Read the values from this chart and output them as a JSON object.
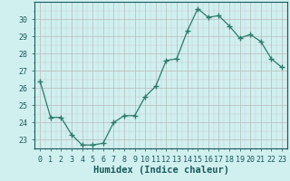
{
  "x": [
    0,
    1,
    2,
    3,
    4,
    5,
    6,
    7,
    8,
    9,
    10,
    11,
    12,
    13,
    14,
    15,
    16,
    17,
    18,
    19,
    20,
    21,
    22,
    23
  ],
  "y": [
    26.4,
    24.3,
    24.3,
    23.3,
    22.7,
    22.7,
    22.8,
    24.0,
    24.4,
    24.4,
    25.5,
    26.1,
    27.6,
    27.7,
    29.3,
    30.6,
    30.1,
    30.2,
    29.6,
    28.9,
    29.1,
    28.7,
    27.7,
    27.2
  ],
  "line_color": "#2d7a6a",
  "marker": "+",
  "marker_size": 4,
  "bg_color": "#d0f0f0",
  "grid_color_minor": "#c8c8c8",
  "grid_color_major": "#b8b8b8",
  "xlabel": "Humidex (Indice chaleur)",
  "ylim": [
    22.5,
    31.0
  ],
  "xlim": [
    -0.5,
    23.5
  ],
  "yticks": [
    23,
    24,
    25,
    26,
    27,
    28,
    29,
    30
  ],
  "font_color": "#1a5a5a",
  "xlabel_fontsize": 7.5,
  "tick_fontsize": 6.0
}
